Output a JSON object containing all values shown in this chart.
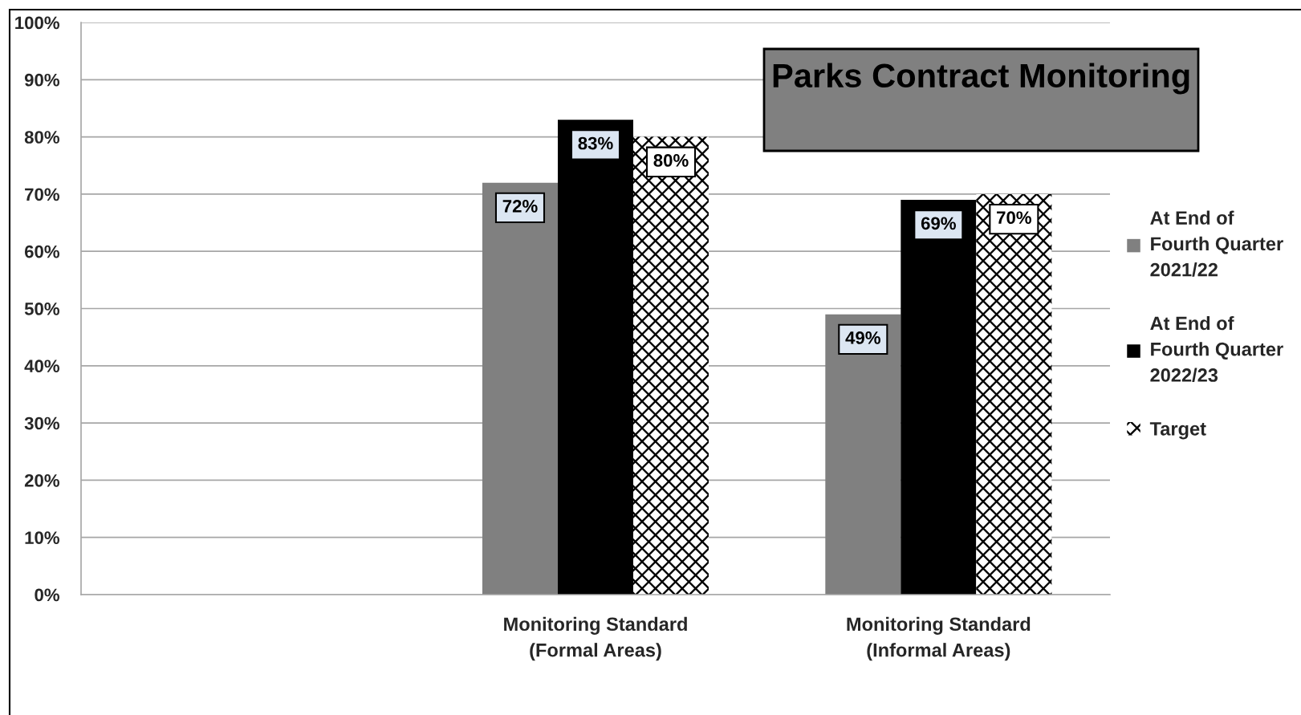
{
  "chart_data": {
    "type": "bar",
    "title": "Parks Contract Monitoring",
    "categories": [
      null,
      "Monitoring Standard\n(Formal Areas)",
      "Monitoring Standard\n(Informal Areas)"
    ],
    "series": [
      {
        "name": "At End of\nFourth Quarter\n2021/22",
        "color": "#808080",
        "values": [
          null,
          72,
          49
        ],
        "value_labels": [
          null,
          "72%",
          "49%"
        ]
      },
      {
        "name": "At End of\nFourth Quarter\n2022/23",
        "color": "#000000",
        "values": [
          null,
          83,
          69
        ],
        "value_labels": [
          null,
          "83%",
          "69%"
        ]
      },
      {
        "name": "Target",
        "color": "#ffffff",
        "values": [
          null,
          80,
          70
        ],
        "value_labels": [
          null,
          "80%",
          "70%"
        ]
      }
    ],
    "ylim": [
      0,
      100
    ],
    "yticks": [
      {
        "value": 0,
        "label": "0%"
      },
      {
        "value": 10,
        "label": "10%"
      },
      {
        "value": 20,
        "label": "20%"
      },
      {
        "value": 30,
        "label": "30%"
      },
      {
        "value": 40,
        "label": "40%"
      },
      {
        "value": 50,
        "label": "50%"
      },
      {
        "value": 60,
        "label": "60%"
      },
      {
        "value": 70,
        "label": "70%"
      },
      {
        "value": 80,
        "label": "80%"
      },
      {
        "value": 90,
        "label": "90%"
      },
      {
        "value": 100,
        "label": "100%"
      }
    ],
    "grid": "y",
    "legend": "right"
  }
}
